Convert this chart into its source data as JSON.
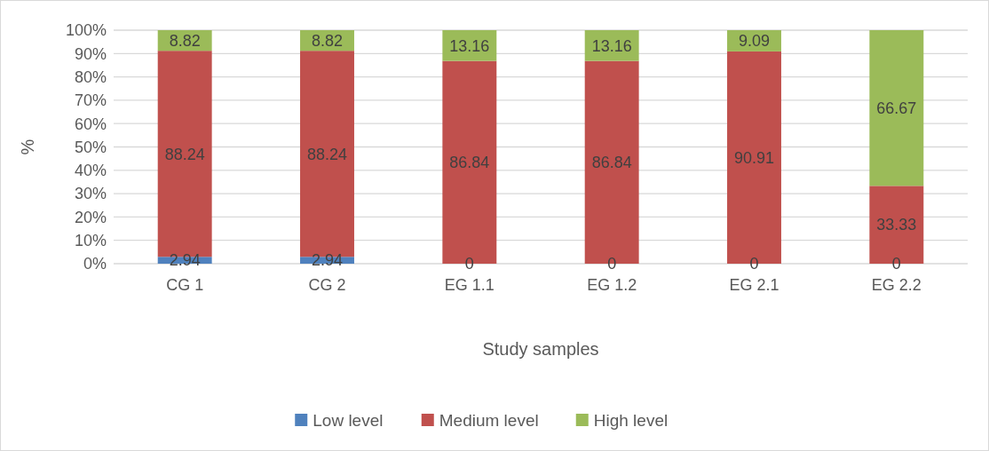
{
  "chart_data": {
    "type": "bar",
    "stacked": true,
    "xlabel": "Study samples",
    "ylabel": "%",
    "categories": [
      "CG 1",
      "CG 2",
      "EG 1.1",
      "EG 1.2",
      "EG 2.1",
      "EG 2.2"
    ],
    "series": [
      {
        "name": "Low level",
        "color": "#4f81bd",
        "values": [
          2.94,
          2.94,
          0,
          0,
          0,
          0
        ],
        "value_labels": [
          "2.94",
          "2.94",
          null,
          null,
          null,
          null
        ]
      },
      {
        "name": "Medium level",
        "color": "#c0504d",
        "values": [
          88.24,
          88.24,
          86.84,
          86.84,
          90.91,
          33.33
        ],
        "value_labels": [
          "88.24",
          "88.24",
          "86.84",
          "86.84",
          "90.91",
          "33.33"
        ]
      },
      {
        "name": "High level",
        "color": "#9bbb59",
        "values": [
          8.82,
          8.82,
          13.16,
          13.16,
          9.09,
          66.67
        ],
        "value_labels": [
          "8.82",
          "8.82",
          "13.16",
          "13.16",
          "9.09",
          "66.67"
        ]
      }
    ],
    "annotations": [
      {
        "text": "0",
        "x": "EG 1.1",
        "y": 0
      },
      {
        "text": "0",
        "x": "EG 1.2",
        "y": 0
      },
      {
        "text": "0",
        "x": "EG 2.1",
        "y": 0
      },
      {
        "text": "0",
        "x": "EG 2.2",
        "y": 0
      }
    ],
    "ylim": [
      0,
      100
    ],
    "yticks": [
      {
        "value": 0,
        "label": "0%"
      },
      {
        "value": 10,
        "label": "10%"
      },
      {
        "value": 20,
        "label": "20%"
      },
      {
        "value": 30,
        "label": "30%"
      },
      {
        "value": 40,
        "label": "40%"
      },
      {
        "value": 50,
        "label": "50%"
      },
      {
        "value": 60,
        "label": "60%"
      },
      {
        "value": 70,
        "label": "70%"
      },
      {
        "value": 80,
        "label": "80%"
      },
      {
        "value": 90,
        "label": "90%"
      },
      {
        "value": 100,
        "label": "100%"
      }
    ],
    "grid": "y",
    "legend": "bottom"
  }
}
